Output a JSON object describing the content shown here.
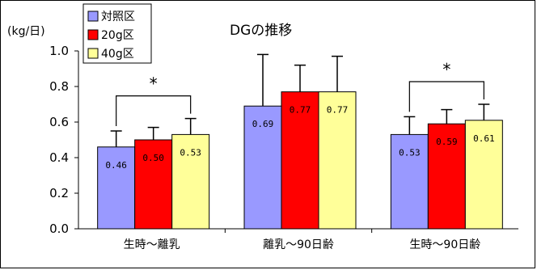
{
  "chart_data": {
    "type": "bar",
    "title": "DGの推移",
    "ylabel": "(kg/日)",
    "xlabel": "",
    "ylim": [
      0,
      1.0
    ],
    "yticks": [
      "1.0",
      "0.8",
      "0.6",
      "0.4",
      "0.2",
      "0.0"
    ],
    "ytick_values": [
      1.0,
      0.8,
      0.6,
      0.4,
      0.2,
      0.0
    ],
    "categories": [
      "生時～離乳",
      "離乳～90日齢",
      "生時～90日齢"
    ],
    "series": [
      {
        "name": "対照区",
        "color": "#9999ff",
        "values": [
          0.46,
          0.69,
          0.53
        ],
        "labels": [
          "0.46",
          "0.69",
          "0.53"
        ],
        "error": [
          0.09,
          0.29,
          0.1
        ]
      },
      {
        "name": "20g区",
        "color": "#ff0000",
        "values": [
          0.5,
          0.77,
          0.59
        ],
        "labels": [
          "0.50",
          "0.77",
          "0.59"
        ],
        "error": [
          0.07,
          0.15,
          0.08
        ]
      },
      {
        "name": "40g区",
        "color": "#ffff99",
        "values": [
          0.53,
          0.77,
          0.61
        ],
        "labels": [
          "0.53",
          "0.77",
          "0.61"
        ],
        "error": [
          0.09,
          0.2,
          0.09
        ]
      }
    ],
    "significance": [
      {
        "category_index": 0,
        "marker": "*"
      },
      {
        "category_index": 2,
        "marker": "*"
      }
    ],
    "legend_position": "top-left",
    "grid": false
  }
}
